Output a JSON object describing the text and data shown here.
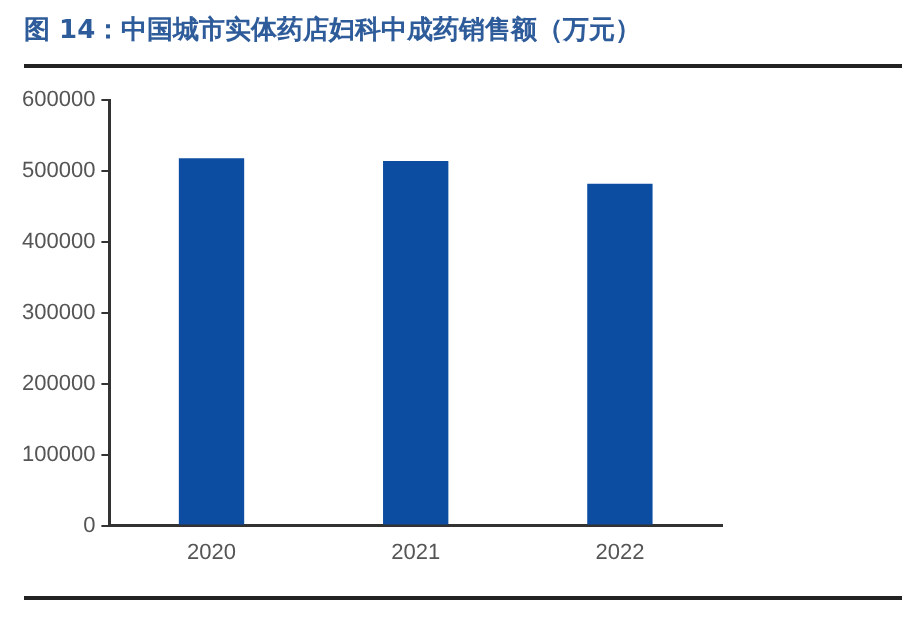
{
  "chart_data": {
    "type": "bar",
    "title": "图 14：中国城市实体药店妇科中成药销售额（万元）",
    "categories": [
      "2020",
      "2021",
      "2022"
    ],
    "values": [
      518000,
      514000,
      482000
    ],
    "color": "#0c4da2",
    "ylim": [
      0,
      600000
    ],
    "yticks": [
      0,
      100000,
      200000,
      300000,
      400000,
      500000,
      600000
    ],
    "grid": false,
    "legend": false
  }
}
